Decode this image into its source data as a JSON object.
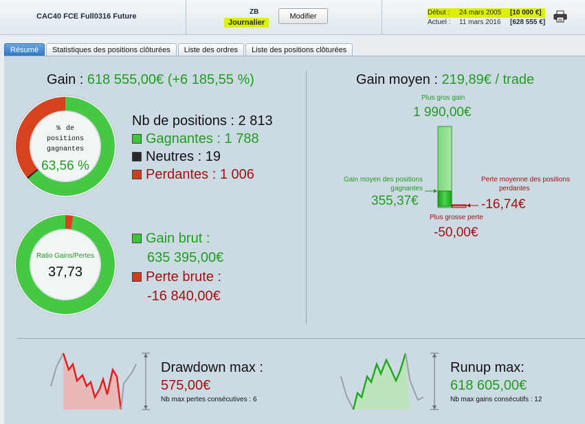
{
  "header": {
    "strategy": "CAC40 FCE Full0316 Future",
    "symbol": "ZB",
    "period": "Journalier",
    "modify_label": "Modifier",
    "start_label": "Début :",
    "start_date": "24 mars 2005",
    "start_capital": "[10 000 €]",
    "current_label": "Actuel :",
    "current_date": "11 mars 2016",
    "current_capital": "[628 555 €]",
    "print_icon": "printer-icon"
  },
  "tabs": [
    {
      "label": "Résumé",
      "active": true
    },
    {
      "label": "Statistiques des positions clôturées",
      "active": false
    },
    {
      "label": "Liste des ordres",
      "active": false
    },
    {
      "label": "Liste des positions clôturées",
      "active": false
    }
  ],
  "gain": {
    "label": "Gain :",
    "value": "618 555,00€ (+6 185,55 %)"
  },
  "win_donut": {
    "caption": "% de positions gagnantes",
    "value": "63,56 %",
    "winning_fraction": 0.6356,
    "neutral_fraction": 0.0068,
    "losing_fraction": 0.3576
  },
  "positions": {
    "total": "Nb de positions : 2 813",
    "winning": "Gagnantes : 1 788",
    "neutral": "Neutres : 19",
    "losing": "Perdantes : 1 006"
  },
  "ratio_donut": {
    "caption": "Ratio Gains/Pertes",
    "value": "37,73",
    "gain_fraction": 0.974,
    "loss_fraction": 0.026
  },
  "gross": {
    "gain_label": "Gain brut :",
    "gain_value": "635 395,00€",
    "loss_label": "Perte brute :",
    "loss_value": "-16 840,00€"
  },
  "avg_gain": {
    "label": "Gain moyen :",
    "value": "219,89€ / trade",
    "biggest_gain_label": "Plus gros gain",
    "biggest_gain_value": "1 990,00€",
    "avg_winning_label_1": "Gain moyen des positions",
    "avg_winning_label_2": "gagnantes",
    "avg_winning_value": "355,37€",
    "avg_losing_label_1": "Perte moyenne des positions",
    "avg_losing_label_2": "perdantes",
    "avg_losing_value": "-16,74€",
    "biggest_loss_label": "Plus grosse perte",
    "biggest_loss_value": "-50,00€"
  },
  "drawdown": {
    "title": "Drawdown max :",
    "value": "575,00€",
    "sub": "Nb max pertes consécutives : 6"
  },
  "runup": {
    "title": "Runup max:",
    "value": "618 605,00€",
    "sub": "Nb max gains consécutifs : 12"
  },
  "colors": {
    "green": "#1f9d1f",
    "red": "#a40f0f",
    "highlight": "#ddf000",
    "tab_active": "#2f77c6"
  }
}
